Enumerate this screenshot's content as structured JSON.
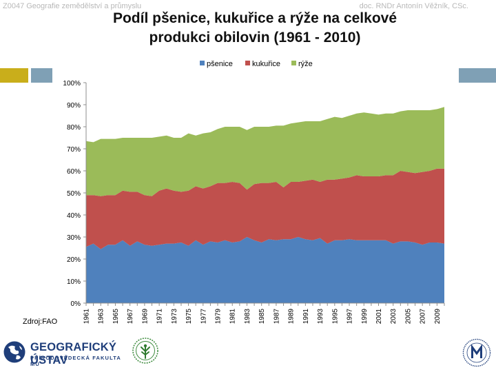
{
  "header": {
    "left": "Z0047 Geografie zemědělství a průmyslu",
    "right": "doc. RNDr Antonín Věžník, CSc."
  },
  "source_note": "Zdroj:FAO",
  "logos": {
    "geo_name": "GEOGRAFICKÝ ÚSTAV",
    "geo_sub": "PŘÍRODOVĚDECKÁ FAKULTA MU"
  },
  "colors": {
    "wheat": "#4f81bd",
    "maize": "#c0504d",
    "rice": "#9bbb59",
    "deco_gold": "#c9ae1b",
    "deco_teal": "#7fa0b5",
    "logo_blue": "#1f3e7a"
  },
  "chart_data": {
    "type": "area",
    "stacked": true,
    "title_lines": [
      "Podíl pšenice, kukuřice a rýže na celkové",
      "produkci obilovin (1961 - 2010)"
    ],
    "x": [
      1961,
      1962,
      1963,
      1964,
      1965,
      1966,
      1967,
      1968,
      1969,
      1970,
      1971,
      1972,
      1973,
      1974,
      1975,
      1976,
      1977,
      1978,
      1979,
      1980,
      1981,
      1982,
      1983,
      1984,
      1985,
      1986,
      1987,
      1988,
      1989,
      1990,
      1991,
      1992,
      1993,
      1994,
      1995,
      1996,
      1997,
      1998,
      1999,
      2000,
      2001,
      2002,
      2003,
      2004,
      2005,
      2006,
      2007,
      2008,
      2009,
      2010
    ],
    "x_tick_labels": [
      "1961",
      "1963",
      "1965",
      "1967",
      "1969",
      "1971",
      "1973",
      "1975",
      "1977",
      "1979",
      "1981",
      "1983",
      "1985",
      "1987",
      "1989",
      "1991",
      "1993",
      "1995",
      "1997",
      "1999",
      "2001",
      "2003",
      "2005",
      "2007",
      "2009"
    ],
    "y_ticks": [
      "0%",
      "10%",
      "20%",
      "30%",
      "40%",
      "50%",
      "60%",
      "70%",
      "80%",
      "90%",
      "100%"
    ],
    "ylim": [
      0,
      100
    ],
    "legend_position": "top",
    "series": [
      {
        "name": "pšenice",
        "color": "#4f81bd",
        "values": [
          25.5,
          27.0,
          24.5,
          26.5,
          26.5,
          28.5,
          26.0,
          28.0,
          26.5,
          26.0,
          26.5,
          27.0,
          27.0,
          27.5,
          26.0,
          28.5,
          26.5,
          28.0,
          27.5,
          28.5,
          27.5,
          28.0,
          30.0,
          28.5,
          27.5,
          29.0,
          28.5,
          29.0,
          29.0,
          30.0,
          29.0,
          28.5,
          29.5,
          27.0,
          28.5,
          28.5,
          29.0,
          28.5,
          28.5,
          28.5,
          28.5,
          28.5,
          27.0,
          28.0,
          28.0,
          27.5,
          26.5,
          27.5,
          27.5,
          27.0
        ]
      },
      {
        "name": "kukuřice",
        "color": "#c0504d",
        "values": [
          23.5,
          22.0,
          24.0,
          22.5,
          22.5,
          22.5,
          24.5,
          22.5,
          22.5,
          22.5,
          24.5,
          25.0,
          24.0,
          23.0,
          25.0,
          24.5,
          25.5,
          25.0,
          27.0,
          26.0,
          27.5,
          26.5,
          21.5,
          25.5,
          27.0,
          25.5,
          26.5,
          23.5,
          26.0,
          25.0,
          26.5,
          27.5,
          25.5,
          29.0,
          27.5,
          28.0,
          28.0,
          29.5,
          29.0,
          29.0,
          29.0,
          29.5,
          31.0,
          32.0,
          31.5,
          31.5,
          33.0,
          32.5,
          33.5,
          34.0
        ]
      },
      {
        "name": "rýže",
        "color": "#9bbb59",
        "values": [
          24.5,
          24.0,
          26.0,
          25.5,
          25.5,
          24.0,
          24.5,
          24.5,
          26.0,
          26.5,
          24.5,
          24.0,
          24.0,
          24.5,
          26.0,
          23.0,
          25.0,
          24.5,
          24.5,
          25.5,
          25.0,
          25.5,
          27.0,
          26.0,
          25.5,
          25.5,
          25.5,
          28.0,
          26.5,
          27.0,
          27.0,
          26.5,
          27.5,
          27.5,
          28.5,
          27.5,
          28.0,
          28.0,
          29.0,
          28.5,
          28.0,
          28.0,
          28.0,
          27.0,
          28.0,
          28.5,
          28.0,
          27.5,
          27.0,
          28.0
        ]
      }
    ]
  }
}
